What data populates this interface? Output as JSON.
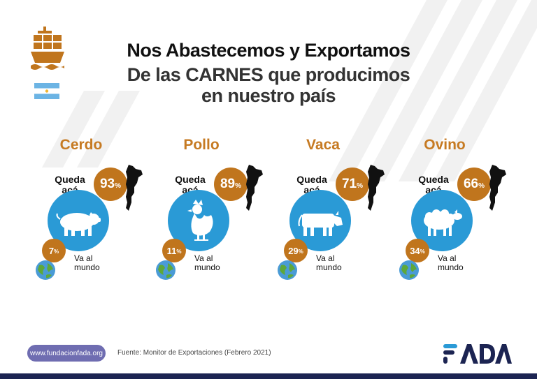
{
  "header": {
    "title_line1": "Nos Abastecemos y Exportamos",
    "title_line2": "De las CARNES  que producimos",
    "title_line3": "en nuestro país"
  },
  "labels": {
    "queda_line1": "Queda",
    "queda_line2": "acá",
    "va_line1": "Va al",
    "va_line2": "mundo",
    "pct_symbol": "%"
  },
  "meats": [
    {
      "name": "Cerdo",
      "local": "93",
      "export": "7",
      "animal": "pig-icon"
    },
    {
      "name": "Pollo",
      "local": "89",
      "export": "11",
      "animal": "chicken-icon"
    },
    {
      "name": "Vaca",
      "local": "71",
      "export": "29",
      "animal": "cow-icon"
    },
    {
      "name": "Ovino",
      "local": "66",
      "export": "34",
      "animal": "sheep-icon"
    }
  ],
  "footer": {
    "website": "www.fundacionfada.org",
    "source": "Fuente: Monitor de Exportaciones (Febrero 2021)",
    "logo_text": "FADA"
  },
  "colors": {
    "accent_orange": "#c0751d",
    "title_orange": "#c67a22",
    "circle_blue": "#2a9ad6",
    "footer_purple": "#6f6db1",
    "logo_navy": "#1c2452",
    "logo_blue": "#2a9ad6"
  }
}
